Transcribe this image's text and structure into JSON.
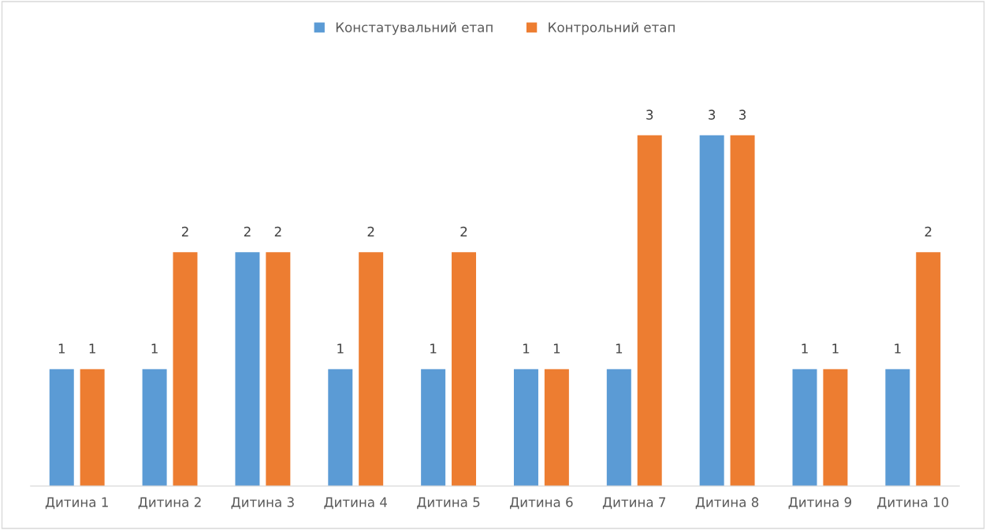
{
  "chart_data": {
    "type": "bar",
    "categories": [
      "Дитина 1",
      "Дитина 2",
      "Дитина 3",
      "Дитина 4",
      "Дитина 5",
      "Дитина 6",
      "Дитина 7",
      "Дитина 8",
      "Дитина 9",
      "Дитина 10"
    ],
    "series": [
      {
        "name": "Констатувальний етап",
        "color": "#5b9bd5",
        "values": [
          1,
          1,
          2,
          1,
          1,
          1,
          1,
          3,
          1,
          1
        ]
      },
      {
        "name": "Контрольний етап",
        "color": "#ed7d31",
        "values": [
          1,
          2,
          2,
          2,
          2,
          1,
          3,
          3,
          1,
          2
        ]
      }
    ],
    "data_labels": true,
    "legend": "top",
    "grid": false
  }
}
